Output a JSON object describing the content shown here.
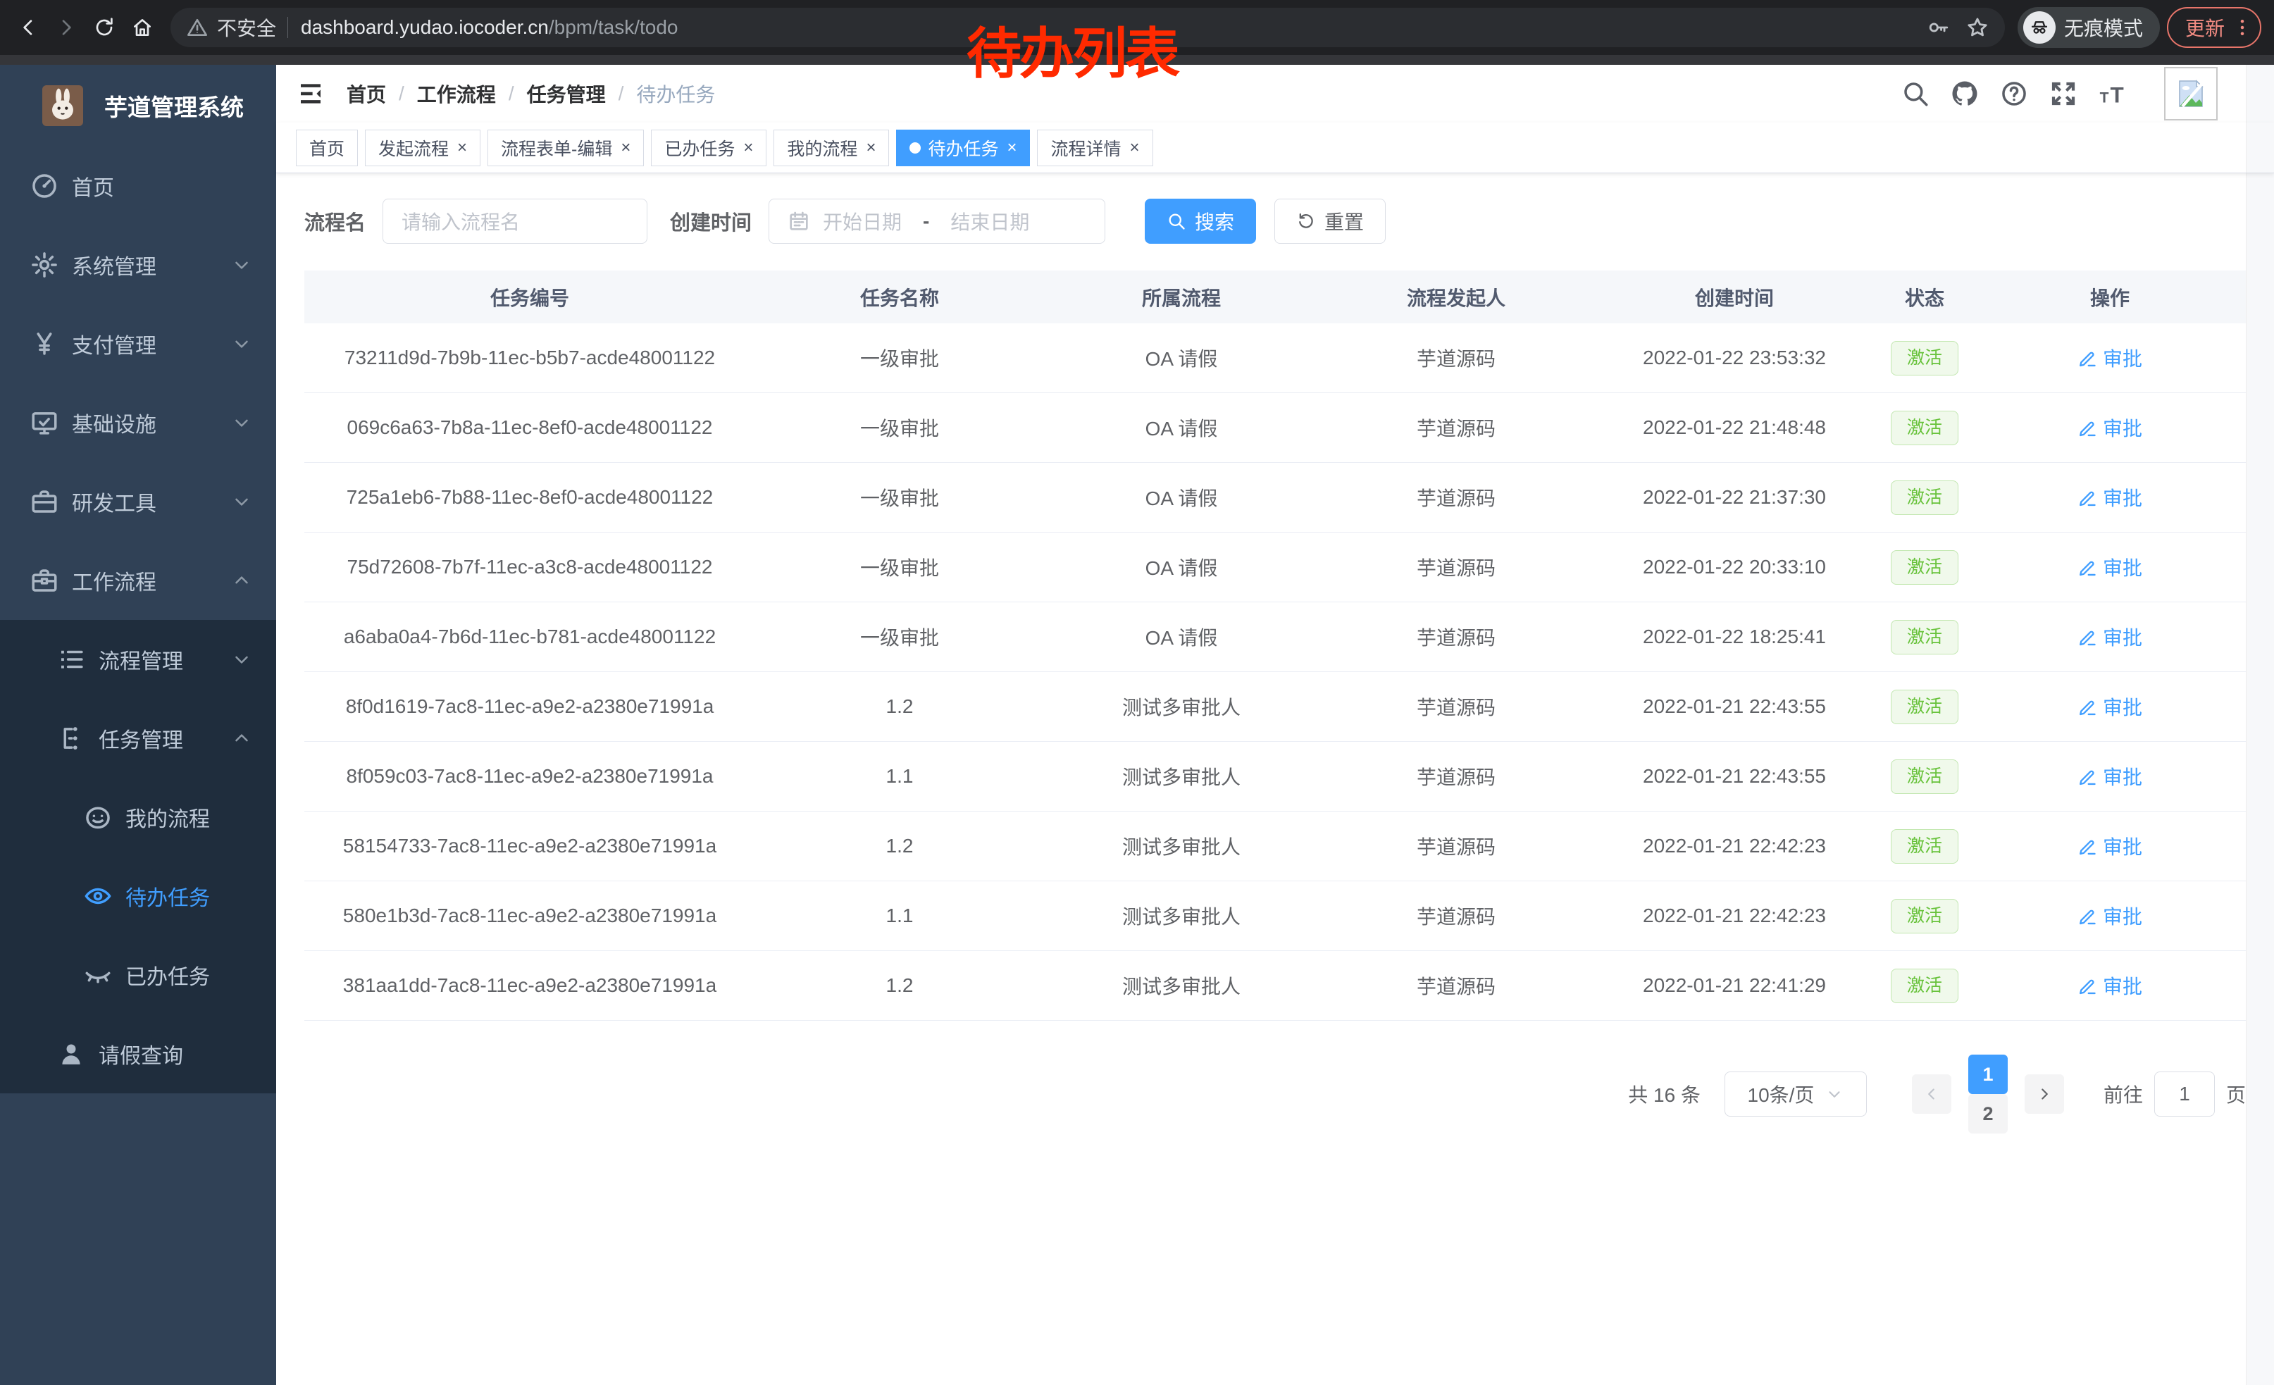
{
  "browser": {
    "security_label": "不安全",
    "url_host": "dashboard.yudao.iocoder.cn",
    "url_path": "/bpm/task/todo",
    "incognito_label": "无痕模式",
    "update_label": "更新"
  },
  "annotation": "待办列表",
  "colors": {
    "primary": "#409eff",
    "success": "#67c23a",
    "annotation_red": "#ff2a00",
    "sidebar_bg": "#304156",
    "submenu_bg": "#1f2d3d"
  },
  "sidebar": {
    "app_title": "芋道管理系统",
    "menu": [
      {
        "label": "首页",
        "icon": "dashboard-icon",
        "level": 1
      },
      {
        "label": "系统管理",
        "icon": "gear-icon",
        "level": 1,
        "chevron": "down"
      },
      {
        "label": "支付管理",
        "icon": "yen-icon",
        "level": 1,
        "chevron": "down"
      },
      {
        "label": "基础设施",
        "icon": "monitor-icon",
        "level": 1,
        "chevron": "down"
      },
      {
        "label": "研发工具",
        "icon": "toolbox-icon",
        "level": 1,
        "chevron": "down"
      },
      {
        "label": "工作流程",
        "icon": "briefcase-icon",
        "level": 1,
        "chevron": "up"
      },
      {
        "label": "流程管理",
        "icon": "flow-list-icon",
        "level": 2,
        "chevron": "down"
      },
      {
        "label": "任务管理",
        "icon": "task-tree-icon",
        "level": 2,
        "chevron": "up"
      },
      {
        "label": "我的流程",
        "icon": "face-icon",
        "level": 3
      },
      {
        "label": "待办任务",
        "icon": "eye-icon",
        "level": 3,
        "active": true
      },
      {
        "label": "已办任务",
        "icon": "eye-closed-icon",
        "level": 3
      },
      {
        "label": "请假查询",
        "icon": "user-icon",
        "level": 2
      }
    ]
  },
  "header": {
    "breadcrumb": [
      "首页",
      "工作流程",
      "任务管理",
      "待办任务"
    ]
  },
  "tabs": [
    {
      "label": "首页",
      "closable": false
    },
    {
      "label": "发起流程",
      "closable": true
    },
    {
      "label": "流程表单-编辑",
      "closable": true
    },
    {
      "label": "已办任务",
      "closable": true
    },
    {
      "label": "我的流程",
      "closable": true
    },
    {
      "label": "待办任务",
      "closable": true,
      "active": true
    },
    {
      "label": "流程详情",
      "closable": true
    }
  ],
  "filters": {
    "name_label": "流程名",
    "name_placeholder": "请输入流程名",
    "time_label": "创建时间",
    "start_placeholder": "开始日期",
    "range_separator": "-",
    "end_placeholder": "结束日期",
    "search_label": "搜索",
    "reset_label": "重置"
  },
  "table": {
    "columns": [
      "任务编号",
      "任务名称",
      "所属流程",
      "流程发起人",
      "创建时间",
      "状态",
      "操作"
    ],
    "rows": [
      {
        "id": "73211d9d-7b9b-11ec-b5b7-acde48001122",
        "name": "一级审批",
        "process": "OA 请假",
        "initiator": "芋道源码",
        "created": "2022-01-22 23:53:32",
        "status": "激活",
        "action": "审批"
      },
      {
        "id": "069c6a63-7b8a-11ec-8ef0-acde48001122",
        "name": "一级审批",
        "process": "OA 请假",
        "initiator": "芋道源码",
        "created": "2022-01-22 21:48:48",
        "status": "激活",
        "action": "审批"
      },
      {
        "id": "725a1eb6-7b88-11ec-8ef0-acde48001122",
        "name": "一级审批",
        "process": "OA 请假",
        "initiator": "芋道源码",
        "created": "2022-01-22 21:37:30",
        "status": "激活",
        "action": "审批"
      },
      {
        "id": "75d72608-7b7f-11ec-a3c8-acde48001122",
        "name": "一级审批",
        "process": "OA 请假",
        "initiator": "芋道源码",
        "created": "2022-01-22 20:33:10",
        "status": "激活",
        "action": "审批"
      },
      {
        "id": "a6aba0a4-7b6d-11ec-b781-acde48001122",
        "name": "一级审批",
        "process": "OA 请假",
        "initiator": "芋道源码",
        "created": "2022-01-22 18:25:41",
        "status": "激活",
        "action": "审批"
      },
      {
        "id": "8f0d1619-7ac8-11ec-a9e2-a2380e71991a",
        "name": "1.2",
        "process": "测试多审批人",
        "initiator": "芋道源码",
        "created": "2022-01-21 22:43:55",
        "status": "激活",
        "action": "审批"
      },
      {
        "id": "8f059c03-7ac8-11ec-a9e2-a2380e71991a",
        "name": "1.1",
        "process": "测试多审批人",
        "initiator": "芋道源码",
        "created": "2022-01-21 22:43:55",
        "status": "激活",
        "action": "审批"
      },
      {
        "id": "58154733-7ac8-11ec-a9e2-a2380e71991a",
        "name": "1.2",
        "process": "测试多审批人",
        "initiator": "芋道源码",
        "created": "2022-01-21 22:42:23",
        "status": "激活",
        "action": "审批"
      },
      {
        "id": "580e1b3d-7ac8-11ec-a9e2-a2380e71991a",
        "name": "1.1",
        "process": "测试多审批人",
        "initiator": "芋道源码",
        "created": "2022-01-21 22:42:23",
        "status": "激活",
        "action": "审批"
      },
      {
        "id": "381aa1dd-7ac8-11ec-a9e2-a2380e71991a",
        "name": "1.2",
        "process": "测试多审批人",
        "initiator": "芋道源码",
        "created": "2022-01-21 22:41:29",
        "status": "激活",
        "action": "审批"
      }
    ]
  },
  "pagination": {
    "total_label": "共 16 条",
    "page_size": "10条/页",
    "pages": [
      "1",
      "2"
    ],
    "active_page": "1",
    "goto_label": "前往",
    "goto_value": "1",
    "unit_label": "页"
  }
}
